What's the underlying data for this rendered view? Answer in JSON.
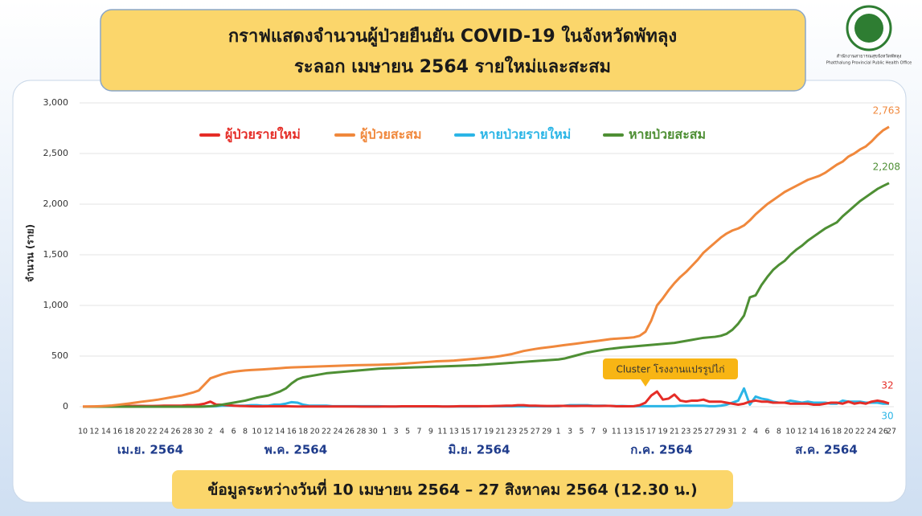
{
  "logo": {
    "org_th": "สำนักงานสาธารณสุขจังหวัดพัทลุง",
    "org_en": "Phatthalung Provincial Public Health Office"
  },
  "chart_data": {
    "type": "line",
    "title": "กราฟแสดงจำนวนผู้ป่วยยืนยัน COVID-19 ในจังหวัดพัทลุง",
    "subtitle": "ระลอก เมษายน 2564 รายใหม่และสะสม",
    "ylabel": "จำนวน (ราย)",
    "footnote": "ข้อมูลระหว่างวันที่ 10 เมษายน 2564 – 27 สิงหาคม 2564 (12.30 น.)",
    "annotations": [
      "Cluster โรงงานแปรรูปไก่"
    ],
    "month_labels": [
      "เม.ย. 2564",
      "พ.ค. 2564",
      "มิ.ย. 2564",
      "ก.ค. 2564",
      "ส.ค. 2564"
    ],
    "categories": [
      "10",
      null,
      "12",
      null,
      "14",
      null,
      "16",
      null,
      "18",
      null,
      "20",
      null,
      "22",
      null,
      "24",
      null,
      "26",
      null,
      "28",
      null,
      "30",
      null,
      "2",
      null,
      "4",
      null,
      "6",
      null,
      "8",
      null,
      "10",
      null,
      "12",
      null,
      "14",
      null,
      "16",
      null,
      "18",
      null,
      "20",
      null,
      "22",
      null,
      "24",
      null,
      "26",
      null,
      "28",
      null,
      "30",
      null,
      "1",
      null,
      "3",
      null,
      "5",
      null,
      "7",
      null,
      "9",
      null,
      "11",
      null,
      "13",
      null,
      "15",
      null,
      "17",
      null,
      "19",
      null,
      "21",
      null,
      "23",
      null,
      "25",
      null,
      "27",
      null,
      "29",
      null,
      "1",
      null,
      "3",
      null,
      "5",
      null,
      "7",
      null,
      "9",
      null,
      "11",
      null,
      "13",
      null,
      "15",
      null,
      "17",
      null,
      "19",
      null,
      "21",
      null,
      "23",
      null,
      "25",
      null,
      "27",
      null,
      "29",
      null,
      "31",
      null,
      "2",
      null,
      "4",
      null,
      "6",
      null,
      "8",
      null,
      "10",
      null,
      "12",
      null,
      "14",
      null,
      "16",
      null,
      "18",
      null,
      "20",
      null,
      "22",
      null,
      "24",
      null,
      "26",
      "27"
    ],
    "ylim": [
      0,
      3000
    ],
    "yticks": [
      0,
      500,
      {
        "value": 1000,
        "label": "1,000"
      },
      {
        "value": 1500,
        "label": "1,500"
      },
      {
        "value": 2000,
        "label": "2,000"
      },
      {
        "value": 2500,
        "label": "2,500"
      },
      {
        "value": 3000,
        "label": "3,000"
      }
    ],
    "grid": true,
    "legend": "top",
    "series": [
      {
        "name": "ผู้ป่วยรายใหม่",
        "color": "#e52d27",
        "label_last": true,
        "values": [
          1,
          1,
          1,
          2,
          3,
          4,
          6,
          7,
          7,
          8,
          8,
          7,
          7,
          8,
          10,
          10,
          10,
          10,
          15,
          15,
          20,
          30,
          50,
          20,
          20,
          15,
          10,
          7,
          6,
          4,
          3,
          3,
          4,
          4,
          4,
          5,
          3,
          2,
          2,
          2,
          2,
          2,
          2,
          2,
          2,
          2,
          2,
          2,
          1,
          1,
          1,
          1,
          2,
          2,
          2,
          4,
          4,
          4,
          4,
          4,
          4,
          4,
          2,
          2,
          3,
          5,
          5,
          5,
          5,
          5,
          5,
          7,
          8,
          10,
          10,
          15,
          15,
          10,
          10,
          8,
          7,
          7,
          8,
          8,
          7,
          7,
          8,
          8,
          7,
          7,
          8,
          8,
          4,
          4,
          4,
          5,
          15,
          40,
          110,
          150,
          70,
          80,
          120,
          60,
          50,
          60,
          60,
          70,
          50,
          50,
          50,
          40,
          30,
          20,
          30,
          50,
          60,
          50,
          50,
          40,
          40,
          40,
          30,
          30,
          30,
          30,
          20,
          20,
          30,
          40,
          40,
          30,
          50,
          30,
          40,
          30,
          50,
          60,
          50,
          32
        ]
      },
      {
        "name": "ผู้ป่วยสะสม",
        "color": "#f0883c",
        "value_labels": {
          "139": "2,763"
        },
        "values": [
          1,
          2,
          3,
          5,
          8,
          12,
          18,
          25,
          32,
          40,
          48,
          55,
          62,
          70,
          80,
          90,
          100,
          110,
          125,
          140,
          160,
          220,
          280,
          300,
          320,
          335,
          345,
          352,
          358,
          362,
          365,
          368,
          372,
          376,
          380,
          385,
          388,
          390,
          392,
          394,
          396,
          398,
          400,
          402,
          404,
          406,
          408,
          410,
          411,
          412,
          413,
          414,
          416,
          418,
          420,
          424,
          428,
          432,
          436,
          440,
          444,
          448,
          450,
          452,
          455,
          460,
          465,
          470,
          475,
          480,
          485,
          492,
          500,
          510,
          520,
          535,
          550,
          560,
          570,
          578,
          585,
          592,
          600,
          608,
          615,
          622,
          630,
          638,
          645,
          652,
          660,
          668,
          672,
          676,
          680,
          685,
          700,
          740,
          850,
          1000,
          1070,
          1150,
          1220,
          1280,
          1330,
          1390,
          1450,
          1520,
          1570,
          1620,
          1670,
          1710,
          1740,
          1760,
          1790,
          1840,
          1900,
          1950,
          2000,
          2040,
          2080,
          2120,
          2150,
          2180,
          2210,
          2240,
          2260,
          2280,
          2310,
          2350,
          2390,
          2420,
          2470,
          2500,
          2540,
          2570,
          2620,
          2680,
          2730,
          2763
        ]
      },
      {
        "name": "หายป่วยรายใหม่",
        "color": "#2bb5e6",
        "label_last": true,
        "values": [
          0,
          0,
          0,
          0,
          0,
          0,
          0,
          0,
          0,
          0,
          0,
          0,
          0,
          0,
          0,
          0,
          0,
          0,
          0,
          0,
          0,
          2,
          3,
          5,
          10,
          10,
          10,
          10,
          10,
          15,
          15,
          10,
          10,
          20,
          20,
          30,
          45,
          40,
          20,
          10,
          10,
          10,
          10,
          5,
          5,
          5,
          5,
          5,
          5,
          5,
          5,
          5,
          3,
          2,
          2,
          2,
          2,
          2,
          2,
          2,
          2,
          2,
          2,
          2,
          2,
          2,
          2,
          2,
          2,
          4,
          4,
          4,
          4,
          4,
          4,
          4,
          4,
          4,
          4,
          4,
          4,
          4,
          4,
          9,
          15,
          15,
          15,
          15,
          10,
          10,
          10,
          7,
          6,
          7,
          5,
          5,
          5,
          5,
          5,
          5,
          5,
          5,
          5,
          10,
          10,
          10,
          10,
          10,
          5,
          5,
          10,
          20,
          40,
          60,
          180,
          20,
          100,
          80,
          70,
          50,
          40,
          40,
          60,
          50,
          40,
          50,
          40,
          40,
          40,
          30,
          30,
          60,
          50,
          50,
          50,
          40,
          40,
          40,
          30,
          30
        ]
      },
      {
        "name": "หายป่วยสะสม",
        "color": "#4e8f34",
        "value_labels": {
          "139": "2,208"
        },
        "values": [
          0,
          0,
          0,
          0,
          0,
          0,
          0,
          0,
          0,
          0,
          0,
          0,
          0,
          0,
          0,
          0,
          0,
          0,
          0,
          0,
          0,
          2,
          5,
          10,
          20,
          30,
          40,
          50,
          60,
          75,
          90,
          100,
          110,
          130,
          150,
          180,
          230,
          270,
          290,
          300,
          310,
          320,
          330,
          335,
          340,
          345,
          350,
          355,
          360,
          365,
          370,
          375,
          378,
          380,
          382,
          384,
          386,
          388,
          390,
          392,
          394,
          396,
          398,
          400,
          402,
          404,
          406,
          408,
          410,
          414,
          418,
          422,
          426,
          430,
          434,
          438,
          442,
          446,
          450,
          454,
          458,
          462,
          466,
          475,
          490,
          505,
          520,
          535,
          545,
          555,
          565,
          572,
          578,
          585,
          590,
          595,
          600,
          605,
          610,
          615,
          620,
          625,
          630,
          640,
          650,
          660,
          670,
          680,
          685,
          690,
          700,
          720,
          760,
          820,
          900,
          1080,
          1100,
          1200,
          1280,
          1350,
          1400,
          1440,
          1500,
          1550,
          1590,
          1640,
          1680,
          1720,
          1760,
          1790,
          1820,
          1880,
          1930,
          1980,
          2030,
          2070,
          2110,
          2150,
          2180,
          2208
        ]
      }
    ]
  }
}
